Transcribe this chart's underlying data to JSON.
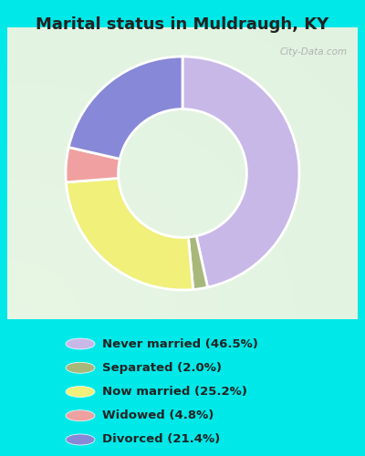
{
  "title": "Marital status in Muldraugh, KY",
  "title_fontsize": 13,
  "title_color": "#222222",
  "background_cyan": "#00e8e8",
  "background_panel": "#e8f5ee",
  "watermark": "City-Data.com",
  "slices": [
    46.5,
    2.0,
    25.2,
    4.8,
    21.4
  ],
  "labels": [
    "Never married (46.5%)",
    "Separated (2.0%)",
    "Now married (25.2%)",
    "Widowed (4.8%)",
    "Divorced (21.4%)"
  ],
  "colors": [
    "#c8b8e8",
    "#a8b87a",
    "#f0f07a",
    "#f0a0a0",
    "#8888d8"
  ],
  "donut_width": 0.45,
  "startangle": 90
}
